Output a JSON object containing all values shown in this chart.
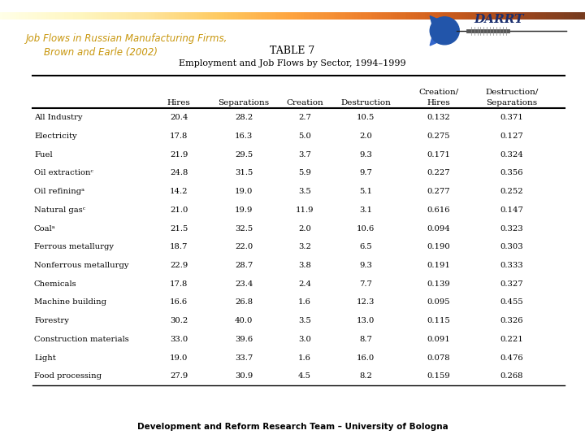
{
  "title_line1": "Job Flows in Russian Manufacturing Firms,",
  "title_line2": "Brown and Earle (2002)",
  "table_title": "TABLE 7",
  "table_subtitle": "Employment and Job Flows by Sector, 1994–1999",
  "col_headers_line1": [
    "",
    "",
    "",
    "",
    "Creation/",
    "Destruction/"
  ],
  "col_headers_line2": [
    "Hires",
    "Separations",
    "Creation",
    "Destruction",
    "Hires",
    "Separations"
  ],
  "row_labels": [
    "All Industry",
    "Electricity",
    "Fuel",
    "Oil extractionᶜ",
    "Oil refiningᵃ",
    "Natural gasᶜ",
    "Coalᵃ",
    "Ferrous metallurgy",
    "Nonferrous metallurgy",
    "Chemicals",
    "Machine building",
    "Forestry",
    "Construction materials",
    "Light",
    "Food processing"
  ],
  "data": [
    [
      20.4,
      28.2,
      2.7,
      10.5,
      0.132,
      0.371
    ],
    [
      17.8,
      16.3,
      5.0,
      2.0,
      0.275,
      0.127
    ],
    [
      21.9,
      29.5,
      3.7,
      9.3,
      0.171,
      0.324
    ],
    [
      24.8,
      31.5,
      5.9,
      9.7,
      0.227,
      0.356
    ],
    [
      14.2,
      19.0,
      3.5,
      5.1,
      0.277,
      0.252
    ],
    [
      21.0,
      19.9,
      11.9,
      3.1,
      0.616,
      0.147
    ],
    [
      21.5,
      32.5,
      2.0,
      10.6,
      0.094,
      0.323
    ],
    [
      18.7,
      22.0,
      3.2,
      6.5,
      0.19,
      0.303
    ],
    [
      22.9,
      28.7,
      3.8,
      9.3,
      0.191,
      0.333
    ],
    [
      17.8,
      23.4,
      2.4,
      7.7,
      0.139,
      0.327
    ],
    [
      16.6,
      26.8,
      1.6,
      12.3,
      0.095,
      0.455
    ],
    [
      30.2,
      40.0,
      3.5,
      13.0,
      0.115,
      0.326
    ],
    [
      33.0,
      39.6,
      3.0,
      8.7,
      0.091,
      0.221
    ],
    [
      19.0,
      33.7,
      1.6,
      16.0,
      0.078,
      0.476
    ],
    [
      27.9,
      30.9,
      4.5,
      8.2,
      0.159,
      0.268
    ]
  ],
  "footer": "Development and Reform Research Team – University of Bologna",
  "title_color": "#C8960C",
  "bg_color": "#FFFFFF",
  "logo_text": "DARRT",
  "bar_color_left": "#C8960C",
  "bar_color_right": "#F0D080"
}
